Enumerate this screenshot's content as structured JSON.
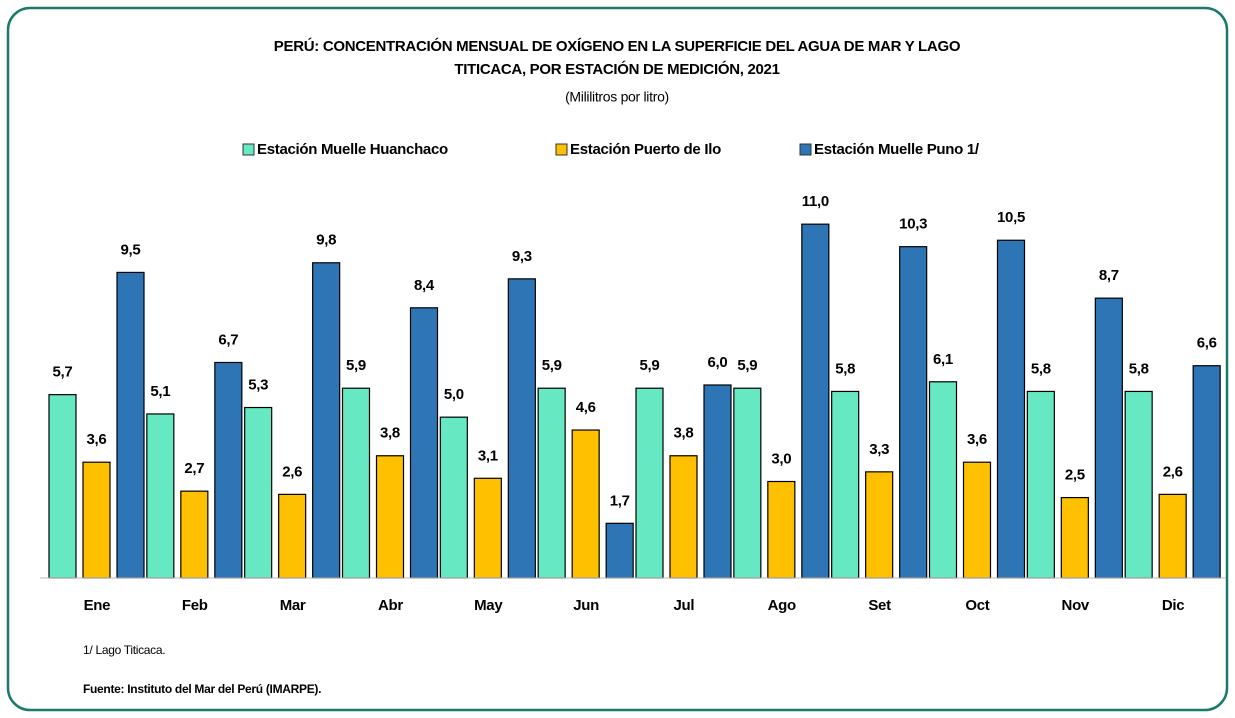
{
  "chart_data": {
    "type": "bar",
    "title": [
      "PERÚ: CONCENTRACIÓN MENSUAL DE OXÍGENO EN LA SUPERFICIE DEL AGUA DE MAR Y LAGO",
      "TITICACA, POR ESTACIÓN DE MEDICIÓN, 2021"
    ],
    "subtitle": "(Mililitros por litro)",
    "categories": [
      "Ene",
      "Feb",
      "Mar",
      "Abr",
      "May",
      "Jun",
      "Jul",
      "Ago",
      "Set",
      "Oct",
      "Nov",
      "Dic"
    ],
    "series": [
      {
        "name": "Estación Muelle Huanchaco",
        "color": "#66e8c2",
        "values": [
          5.7,
          5.1,
          5.3,
          5.9,
          5.0,
          5.9,
          5.9,
          5.9,
          5.8,
          6.1,
          5.8,
          5.8
        ],
        "value_labels": [
          "5,7",
          "5,1",
          "5,3",
          "5,9",
          "5,0",
          "5,9",
          "5,9",
          "5,9",
          "5,8",
          "6,1",
          "5,8",
          "5,8"
        ]
      },
      {
        "name": "Estación Puerto de Ilo",
        "color": "#ffc000",
        "values": [
          3.6,
          2.7,
          2.6,
          3.8,
          3.1,
          4.6,
          3.8,
          3.0,
          3.3,
          3.6,
          2.5,
          2.6
        ],
        "value_labels": [
          "3,6",
          "2,7",
          "2,6",
          "3,8",
          "3,1",
          "4,6",
          "3,8",
          "3,0",
          "3,3",
          "3,6",
          "2,5",
          "2,6"
        ]
      },
      {
        "name": "Estación Muelle Puno 1/",
        "color": "#2e75b6",
        "values": [
          9.5,
          6.7,
          9.8,
          8.4,
          9.3,
          1.7,
          6.0,
          11.0,
          10.3,
          10.5,
          8.7,
          6.6
        ],
        "value_labels": [
          "9,5",
          "6,7",
          "9,8",
          "8,4",
          "9,3",
          "1,7",
          "6,0",
          "11,0",
          "10,3",
          "10,5",
          "8,7",
          "6,6"
        ]
      }
    ],
    "ylim": [
      0,
      12
    ],
    "notes": [
      "1/ Lago Titicaca.",
      "Fuente: Instituto del Mar del Perú (IMARPE)."
    ]
  }
}
